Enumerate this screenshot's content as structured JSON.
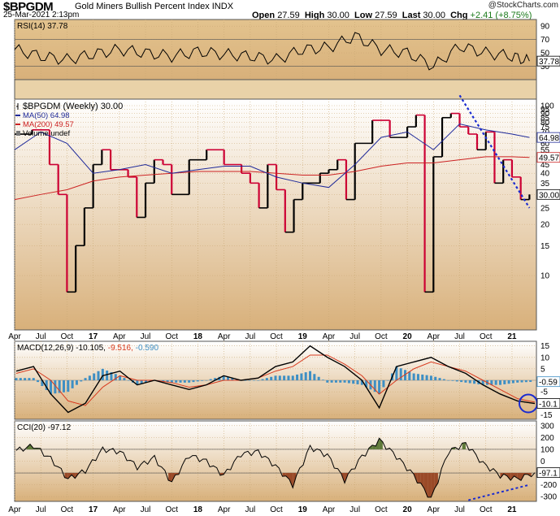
{
  "header": {
    "symbol": "$BPGDM",
    "name": "Gold Miners Bullish Percent Index",
    "exchange": "INDX",
    "timestamp": "25-Mar-2021 2:13pm",
    "credit": "@StockCharts.com",
    "open_label": "Open",
    "open": "27.59",
    "high_label": "High",
    "high": "30.00",
    "low_label": "Low",
    "low": "27.59",
    "last_label": "Last",
    "last": "30.00",
    "chg_label": "Chg",
    "chg": "+2.41 (+8.75%)",
    "chg_color": "#1a7a1a"
  },
  "colors": {
    "panel_top": "#ffffff",
    "panel_bottom": "#d8b07a",
    "price_up": "#000000",
    "price_down": "#cc0033",
    "ma50": "#1f2a9a",
    "ma200": "#cc2222",
    "histogram": "#3e8fc4",
    "overbought_fill": "#5f7a3a",
    "oversold_fill": "#9a4a28",
    "annotation": "#1a2bd0"
  },
  "chart_data": [
    {
      "type": "line",
      "title": "RSI(14) 37.78",
      "indicator": "RSI(14)",
      "last": 37.78,
      "ylim": [
        10,
        100
      ],
      "y_ticks": [
        90,
        70,
        50,
        30
      ],
      "reference_lines": [
        70,
        30
      ],
      "last_label": "37.78",
      "x": [
        "2016-04",
        "2016-07",
        "2016-10",
        "2017-01",
        "2017-04",
        "2017-07",
        "2017-10",
        "2018-01",
        "2018-04",
        "2018-07",
        "2018-10",
        "2019-01",
        "2019-04",
        "2019-07",
        "2019-10",
        "2020-01",
        "2020-04",
        "2020-07",
        "2020-10",
        "2021-01",
        "2021-03"
      ],
      "values": [
        55,
        45,
        40,
        48,
        55,
        50,
        45,
        52,
        48,
        45,
        40,
        55,
        58,
        75,
        55,
        50,
        30,
        60,
        50,
        45,
        37.78
      ]
    },
    {
      "type": "line",
      "title": "$BPGDM (Weekly) 30.00",
      "scale": "log",
      "ylim": [
        5,
        100
      ],
      "y_ticks": [
        100,
        95,
        90,
        85,
        80,
        75,
        70,
        65,
        60,
        55,
        50,
        45,
        40,
        35,
        30,
        25,
        20,
        15,
        10
      ],
      "x_tick_labels": [
        "Apr",
        "Jul",
        "Oct",
        "17",
        "Apr",
        "Jul",
        "Oct",
        "18",
        "Apr",
        "Jul",
        "Oct",
        "19",
        "Apr",
        "Jul",
        "Oct",
        "20",
        "Apr",
        "Jul",
        "Oct",
        "21"
      ],
      "legend": [
        {
          "name": "$BPGDM (Weekly) 30.00",
          "swatch": "ohlc"
        },
        {
          "name": "MA(50) 64.98",
          "swatch": "#1f2a9a"
        },
        {
          "name": "MA(200) 49.57",
          "swatch": "#cc2222"
        },
        {
          "name": "Volume undef",
          "swatch": "bars"
        }
      ],
      "last_labels": [
        {
          "text": "64.98",
          "value": 64.98
        },
        {
          "text": "49.57",
          "value": 49.57
        },
        {
          "text": "30.00",
          "value": 30.0
        }
      ],
      "series": [
        {
          "name": "$BPGDM",
          "x": [
            "2016-04",
            "2016-06",
            "2016-08",
            "2016-09",
            "2016-10",
            "2016-11",
            "2016-12",
            "2017-01",
            "2017-02",
            "2017-03",
            "2017-05",
            "2017-06",
            "2017-07",
            "2017-08",
            "2017-09",
            "2017-10",
            "2017-12",
            "2018-02",
            "2018-04",
            "2018-06",
            "2018-07",
            "2018-08",
            "2018-09",
            "2018-10",
            "2018-11",
            "2018-12",
            "2019-01",
            "2019-03",
            "2019-04",
            "2019-05",
            "2019-06",
            "2019-07",
            "2019-09",
            "2019-11",
            "2020-01",
            "2020-02",
            "2020-03",
            "2020-04",
            "2020-05",
            "2020-06",
            "2020-07",
            "2020-08",
            "2020-09",
            "2020-10",
            "2020-11",
            "2020-12",
            "2021-01",
            "2021-02",
            "2021-03"
          ],
          "values": [
            68,
            72,
            45,
            30,
            8,
            15,
            25,
            45,
            55,
            42,
            38,
            22,
            35,
            48,
            45,
            30,
            48,
            55,
            45,
            40,
            35,
            25,
            45,
            32,
            18,
            28,
            35,
            40,
            42,
            48,
            28,
            60,
            82,
            65,
            75,
            88,
            8,
            50,
            85,
            90,
            75,
            68,
            55,
            70,
            35,
            48,
            38,
            28,
            30
          ]
        },
        {
          "name": "MA(50)",
          "x": [
            "2016-04",
            "2016-07",
            "2016-10",
            "2017-01",
            "2017-04",
            "2017-07",
            "2017-10",
            "2018-01",
            "2018-04",
            "2018-07",
            "2018-10",
            "2019-01",
            "2019-04",
            "2019-07",
            "2019-10",
            "2020-01",
            "2020-04",
            "2020-07",
            "2020-10",
            "2021-01",
            "2021-03"
          ],
          "values": [
            55,
            70,
            60,
            40,
            42,
            45,
            40,
            42,
            44,
            44,
            38,
            35,
            33,
            45,
            65,
            70,
            55,
            78,
            72,
            68,
            64.98
          ]
        },
        {
          "name": "MA(200)",
          "x": [
            "2016-04",
            "2016-07",
            "2016-10",
            "2017-01",
            "2017-04",
            "2017-07",
            "2017-10",
            "2018-01",
            "2018-04",
            "2018-07",
            "2018-10",
            "2019-01",
            "2019-04",
            "2019-07",
            "2019-10",
            "2020-01",
            "2020-04",
            "2020-07",
            "2020-10",
            "2021-01",
            "2021-03"
          ],
          "values": [
            28,
            30,
            32,
            36,
            38,
            39,
            40,
            41,
            41,
            41,
            40,
            39,
            39,
            41,
            44,
            46,
            46,
            48,
            50,
            50,
            49.57
          ]
        }
      ],
      "trendline": {
        "x": [
          "2020-07",
          "2021-03"
        ],
        "values": [
          115,
          25
        ]
      }
    },
    {
      "type": "line",
      "title": "MACD(12,26,9) -10.105, -9.516, -0.590",
      "ylim": [
        -17,
        17
      ],
      "y_ticks": [
        15,
        10,
        5,
        -5,
        -10,
        -15
      ],
      "last_labels": [
        "-0.59",
        "-10.1"
      ],
      "series": [
        {
          "name": "MACD(12,26,9)",
          "last": -10.105,
          "values": [
            4,
            6,
            -6,
            -14,
            -10,
            2,
            4,
            -2,
            0,
            -2,
            -4,
            -2,
            2,
            0,
            1,
            6,
            8,
            15,
            10,
            6,
            0,
            -12,
            6,
            8,
            10,
            6,
            3,
            -2,
            -6,
            -9,
            -10.105
          ]
        },
        {
          "name": "Signal",
          "last": -9.516,
          "values": [
            3,
            5,
            0,
            -9,
            -11,
            -3,
            2,
            0,
            0,
            -1,
            -3,
            -2,
            0,
            0,
            1,
            4,
            6,
            11,
            11,
            7,
            2,
            -6,
            0,
            5,
            8,
            6,
            4,
            0,
            -4,
            -8,
            -9.516
          ]
        },
        {
          "name": "Histogram",
          "last": -0.59,
          "values": [
            1,
            1,
            -6,
            -5,
            1,
            5,
            2,
            -2,
            0,
            -1,
            -1,
            0,
            2,
            0,
            0,
            2,
            2,
            4,
            -1,
            -1,
            -2,
            -6,
            6,
            3,
            2,
            0,
            -1,
            -2,
            -2,
            -1,
            -0.59
          ]
        }
      ]
    },
    {
      "type": "line",
      "title": "CCI(20) -97.12",
      "indicator": "CCI(20)",
      "last": -97.12,
      "ylim": [
        -340,
        340
      ],
      "y_ticks": [
        300,
        200,
        100,
        0,
        -100,
        -200,
        -300
      ],
      "reference_lines": [
        100,
        -100
      ],
      "last_label": "-97.1",
      "values": [
        90,
        130,
        20,
        -150,
        -80,
        100,
        80,
        -50,
        30,
        -180,
        50,
        0,
        -120,
        60,
        80,
        -40,
        -200,
        120,
        50,
        -160,
        40,
        180,
        40,
        -120,
        -320,
        80,
        150,
        -20,
        -120,
        -150,
        -97.12
      ]
    }
  ],
  "x_axis": [
    "Apr",
    "Jul",
    "Oct",
    "17",
    "Apr",
    "Jul",
    "Oct",
    "18",
    "Apr",
    "Jul",
    "Oct",
    "19",
    "Apr",
    "Jul",
    "Oct",
    "20",
    "Apr",
    "Jul",
    "Oct",
    "21"
  ]
}
